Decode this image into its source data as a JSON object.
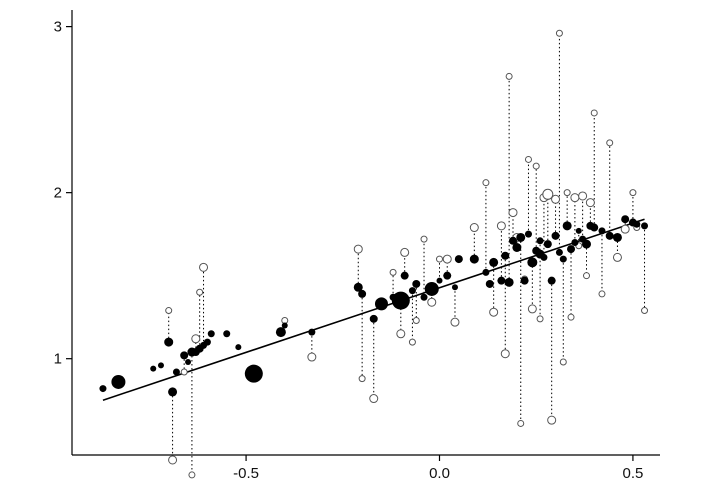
{
  "chart_data": {
    "type": "scatter",
    "title": "",
    "xlabel": "",
    "ylabel": "",
    "xlim": [
      -0.95,
      0.57
    ],
    "ylim": [
      0.42,
      3.1
    ],
    "x_ticks": [
      -0.5,
      0.0,
      0.5
    ],
    "x_tick_labels": [
      "-0.5",
      "0.0",
      "0.5"
    ],
    "y_ticks": [
      1,
      2,
      3
    ],
    "y_tick_labels": [
      "1",
      "2",
      "3"
    ],
    "grid": false,
    "legend": "none",
    "colors": {
      "filled": "#000000",
      "open": "#555555",
      "line": "#000000"
    },
    "fit_line": {
      "x": [
        -0.87,
        0.53
      ],
      "y": [
        0.75,
        1.84
      ]
    },
    "series": [
      {
        "marker": "filled",
        "x": [
          -0.87,
          -0.83,
          -0.74,
          -0.72,
          -0.69,
          -0.68,
          -0.66,
          -0.65,
          -0.63,
          -0.62,
          -0.61,
          -0.6,
          -0.59,
          -0.52,
          -0.48,
          -0.41,
          -0.4,
          -0.33,
          -0.21,
          -0.2,
          -0.17,
          -0.15,
          -0.12,
          -0.1,
          -0.09,
          -0.07,
          -0.06,
          -0.04,
          -0.02,
          0.0,
          0.02,
          0.04,
          0.09,
          0.12,
          0.14,
          0.16,
          0.17,
          0.18,
          0.19,
          0.2,
          0.21,
          0.22,
          0.23,
          0.24,
          0.25,
          0.26,
          0.27,
          0.28,
          0.29,
          0.3,
          0.31,
          0.32,
          0.33,
          0.34,
          0.35,
          0.36,
          0.37,
          0.38,
          0.39,
          0.4,
          0.42,
          0.44,
          0.46,
          0.48,
          0.5,
          0.51,
          0.53,
          -0.7,
          -0.64,
          -0.55,
          0.05,
          0.13,
          0.26
        ],
        "y": [
          0.82,
          0.86,
          0.94,
          0.96,
          0.8,
          0.92,
          1.02,
          0.98,
          1.04,
          1.06,
          1.08,
          1.1,
          1.15,
          1.07,
          0.91,
          1.16,
          1.2,
          1.16,
          1.43,
          1.39,
          1.24,
          1.33,
          1.37,
          1.35,
          1.5,
          1.41,
          1.45,
          1.37,
          1.42,
          1.47,
          1.5,
          1.43,
          1.6,
          1.52,
          1.58,
          1.47,
          1.62,
          1.46,
          1.71,
          1.67,
          1.73,
          1.47,
          1.75,
          1.58,
          1.65,
          1.71,
          1.61,
          1.69,
          1.47,
          1.74,
          1.64,
          1.6,
          1.8,
          1.66,
          1.7,
          1.77,
          1.72,
          1.69,
          1.8,
          1.79,
          1.77,
          1.74,
          1.73,
          1.84,
          1.82,
          1.81,
          1.8,
          1.1,
          1.04,
          1.15,
          1.6,
          1.45,
          1.63
        ],
        "size": [
          3.5,
          7,
          3,
          3,
          4.5,
          3.5,
          4,
          3,
          4,
          4,
          3.5,
          3.5,
          3.5,
          3,
          9,
          5,
          3,
          3.5,
          4.5,
          4,
          4,
          6.5,
          3.5,
          9,
          4,
          3.5,
          4,
          3.5,
          7,
          3,
          4,
          3,
          4.5,
          3.5,
          4.5,
          4,
          4,
          4.5,
          4,
          4.5,
          4.5,
          4,
          3.5,
          5,
          4,
          3.5,
          3.5,
          4,
          4,
          4,
          3.5,
          3.5,
          4.5,
          4,
          3.5,
          3,
          3.5,
          4.5,
          4,
          4,
          3.5,
          4,
          4.5,
          4,
          4,
          3.5,
          3.5,
          4.5,
          4.5,
          3.5,
          4,
          4,
          4.5
        ],
        "open_y": [
          null,
          null,
          null,
          null,
          0.39,
          null,
          0.92,
          null,
          1.12,
          1.4,
          1.55,
          null,
          null,
          null,
          null,
          null,
          1.23,
          1.01,
          1.66,
          0.88,
          0.76,
          null,
          1.52,
          1.15,
          1.64,
          1.1,
          1.23,
          1.72,
          1.34,
          1.6,
          1.6,
          1.22,
          1.79,
          2.06,
          1.28,
          1.8,
          1.03,
          2.7,
          1.88,
          1.73,
          0.61,
          1.48,
          2.2,
          1.3,
          2.16,
          1.24,
          1.97,
          1.99,
          0.63,
          1.96,
          2.96,
          0.98,
          2.0,
          1.25,
          1.97,
          1.68,
          1.98,
          1.5,
          1.94,
          2.48,
          1.39,
          2.3,
          1.61,
          1.78,
          2.0,
          1.79,
          1.29,
          1.29,
          0.3,
          null,
          null,
          null,
          null
        ],
        "open_size": [
          0,
          0,
          0,
          0,
          4,
          0,
          3,
          0,
          4,
          3,
          4,
          0,
          0,
          0,
          0,
          0,
          3,
          4,
          4,
          3,
          4,
          0,
          3,
          4,
          4,
          3,
          3,
          3,
          4,
          3,
          4,
          4,
          4,
          3,
          4,
          4,
          4,
          3,
          4,
          4,
          3,
          3,
          3,
          4,
          3,
          3,
          4,
          5,
          4,
          4,
          3,
          3,
          3,
          3,
          4,
          3,
          4,
          3,
          4,
          3,
          3,
          3,
          4,
          4,
          3,
          3,
          3,
          3,
          3,
          0,
          0,
          0,
          0
        ]
      }
    ]
  }
}
